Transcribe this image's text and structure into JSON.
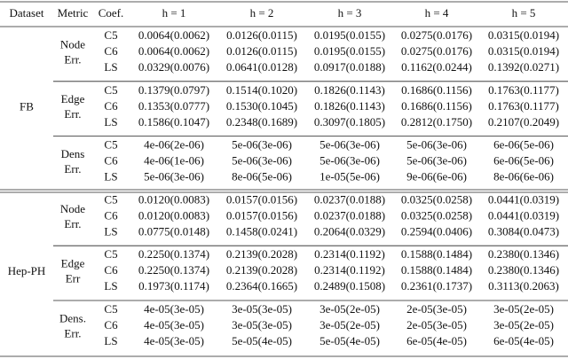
{
  "header": [
    "Dataset",
    "Metric",
    "Coef.",
    "h = 1",
    "h = 2",
    "h = 3",
    "h = 4",
    "h = 5"
  ],
  "datasets": [
    {
      "name": "FB",
      "metrics": [
        {
          "label": [
            "Node",
            "Err."
          ],
          "rows": [
            {
              "coef": "C5",
              "cells": [
                "0.0064(0.0062)",
                "0.0126(0.0115)",
                "0.0195(0.0155)",
                "0.0275(0.0176)",
                "0.0315(0.0194)"
              ]
            },
            {
              "coef": "C6",
              "cells": [
                "0.0064(0.0062)",
                "0.0126(0.0115)",
                "0.0195(0.0155)",
                "0.0275(0.0176)",
                "0.0315(0.0194)"
              ]
            },
            {
              "coef": "LS",
              "cells": [
                "0.0329(0.0076)",
                "0.0641(0.0128)",
                "0.0917(0.0188)",
                "0.1162(0.0244)",
                "0.1392(0.0271)"
              ]
            }
          ]
        },
        {
          "label": [
            "Edge",
            "Err."
          ],
          "rows": [
            {
              "coef": "C5",
              "cells": [
                "0.1379(0.0797)",
                "0.1514(0.1020)",
                "0.1826(0.1143)",
                "0.1686(0.1156)",
                "0.1763(0.1177)"
              ]
            },
            {
              "coef": "C6",
              "cells": [
                "0.1353(0.0777)",
                "0.1530(0.1045)",
                "0.1826(0.1143)",
                "0.1686(0.1156)",
                "0.1763(0.1177)"
              ]
            },
            {
              "coef": "LS",
              "cells": [
                "0.1586(0.1047)",
                "0.2348(0.1689)",
                "0.3097(0.1805)",
                "0.2812(0.1750)",
                "0.2107(0.2049)"
              ]
            }
          ]
        },
        {
          "label": [
            "Dens",
            "Err."
          ],
          "rows": [
            {
              "coef": "C5",
              "cells": [
                "4e-06(2e-06)",
                "5e-06(3e-06)",
                "5e-06(3e-06)",
                "5e-06(3e-06)",
                "6e-06(5e-06)"
              ]
            },
            {
              "coef": "C6",
              "cells": [
                "4e-06(1e-06)",
                "5e-06(3e-06)",
                "5e-06(3e-06)",
                "5e-06(3e-06)",
                "6e-06(5e-06)"
              ]
            },
            {
              "coef": "LS",
              "cells": [
                "5e-06(3e-06)",
                "8e-06(5e-06)",
                "1e-05(5e-06)",
                "9e-06(6e-06)",
                "8e-06(6e-06)"
              ]
            }
          ]
        }
      ]
    },
    {
      "name": "Hep-PH",
      "metrics": [
        {
          "label": [
            "Node",
            "Err."
          ],
          "rows": [
            {
              "coef": "C5",
              "cells": [
                "0.0120(0.0083)",
                "0.0157(0.0156)",
                "0.0237(0.0188)",
                "0.0325(0.0258)",
                "0.0441(0.0319)"
              ]
            },
            {
              "coef": "C6",
              "cells": [
                "0.0120(0.0083)",
                "0.0157(0.0156)",
                "0.0237(0.0188)",
                "0.0325(0.0258)",
                "0.0441(0.0319)"
              ]
            },
            {
              "coef": "LS",
              "cells": [
                "0.0775(0.0148)",
                "0.1458(0.0241)",
                "0.2064(0.0329)",
                "0.2594(0.0406)",
                "0.3084(0.0473)"
              ]
            }
          ]
        },
        {
          "label": [
            "Edge",
            "Err"
          ],
          "rows": [
            {
              "coef": "C5",
              "cells": [
                "0.2250(0.1374)",
                "0.2139(0.2028)",
                "0.2314(0.1192)",
                "0.1588(0.1484)",
                "0.2380(0.1346)"
              ]
            },
            {
              "coef": "C6",
              "cells": [
                "0.2250(0.1374)",
                "0.2139(0.2028)",
                "0.2314(0.1192)",
                "0.1588(0.1484)",
                "0.2380(0.1346)"
              ]
            },
            {
              "coef": "LS",
              "cells": [
                "0.1973(0.1174)",
                "0.2364(0.1665)",
                "0.2489(0.1508)",
                "0.2361(0.1737)",
                "0.3113(0.2063)"
              ]
            }
          ]
        },
        {
          "label": [
            "Dens.",
            "Err."
          ],
          "rows": [
            {
              "coef": "C5",
              "cells": [
                "4e-05(3e-05)",
                "3e-05(3e-05)",
                "3e-05(2e-05)",
                "2e-05(3e-05)",
                "3e-05(2e-05)"
              ]
            },
            {
              "coef": "C6",
              "cells": [
                "4e-05(3e-05)",
                "3e-05(3e-05)",
                "3e-05(2e-05)",
                "2e-05(3e-05)",
                "3e-05(2e-05)"
              ]
            },
            {
              "coef": "LS",
              "cells": [
                "4e-05(3e-05)",
                "5e-05(4e-05)",
                "5e-05(4e-05)",
                "6e-05(4e-05)",
                "6e-05(4e-05)"
              ]
            }
          ]
        }
      ]
    }
  ]
}
